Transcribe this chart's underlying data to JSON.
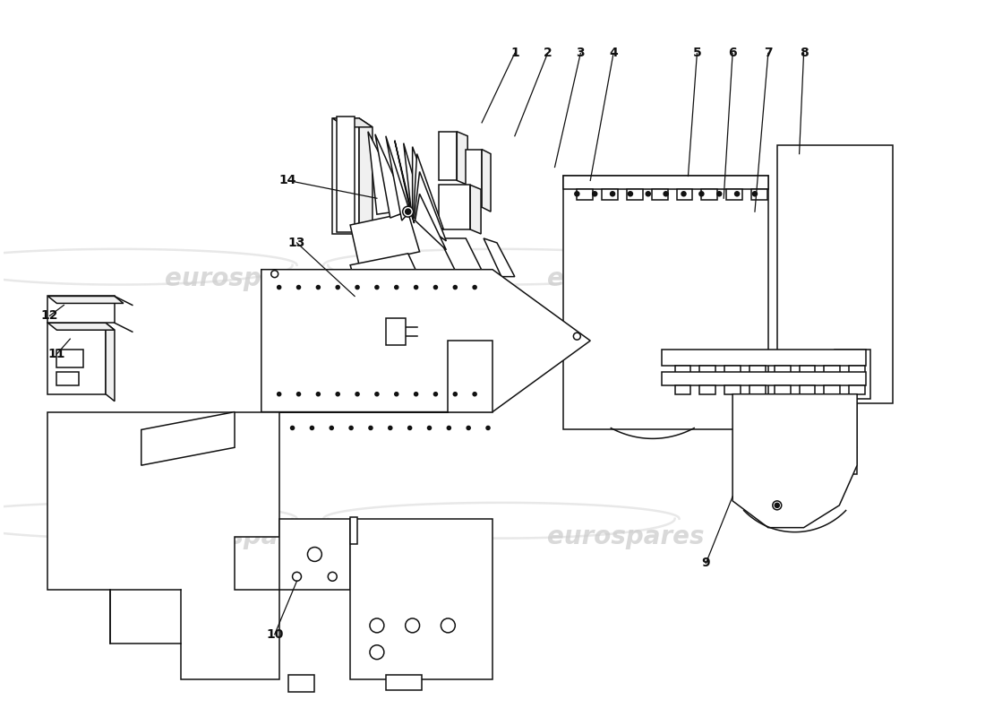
{
  "background_color": "#ffffff",
  "line_color": "#111111",
  "watermark_color": "#bbbbbb",
  "watermark_text": "eurospares",
  "lw": 1.1,
  "fig_width": 11.0,
  "fig_height": 8.0,
  "callouts": [
    [
      "1",
      575,
      57,
      538,
      135
    ],
    [
      "2",
      612,
      57,
      575,
      150
    ],
    [
      "3",
      649,
      57,
      620,
      185
    ],
    [
      "4",
      686,
      57,
      660,
      200
    ],
    [
      "5",
      780,
      57,
      770,
      195
    ],
    [
      "6",
      820,
      57,
      810,
      220
    ],
    [
      "7",
      860,
      57,
      845,
      235
    ],
    [
      "8",
      900,
      57,
      895,
      170
    ],
    [
      "9",
      790,
      630,
      820,
      555
    ],
    [
      "10",
      305,
      710,
      330,
      650
    ],
    [
      "11",
      60,
      395,
      75,
      378
    ],
    [
      "12",
      52,
      352,
      68,
      340
    ],
    [
      "13",
      330,
      270,
      395,
      330
    ],
    [
      "14",
      320,
      200,
      420,
      220
    ]
  ]
}
